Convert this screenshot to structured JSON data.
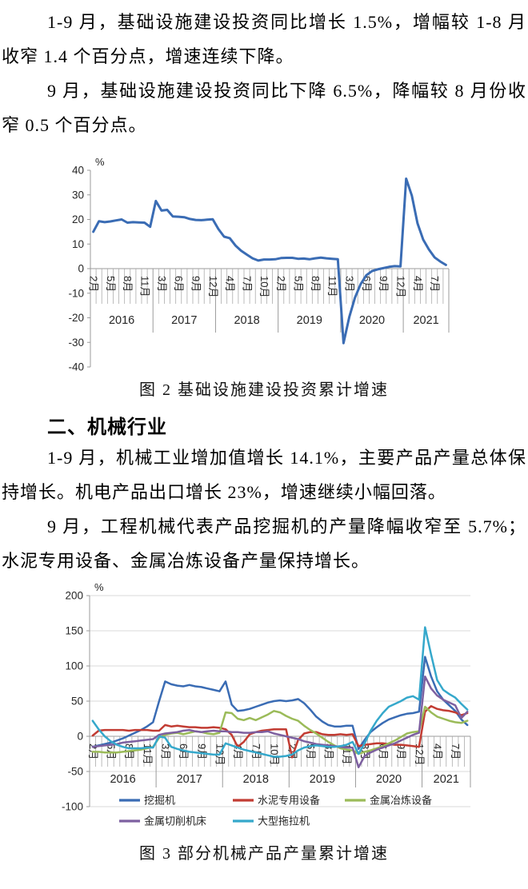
{
  "paragraphs": {
    "p1": "1-9 月，基础设施建设投资同比增长 1.5%，增幅较 1-8 月收窄 1.4 个百分点，增速连续下降。",
    "p2": "9 月，基础设施建设投资同比下降 6.5%，降幅较 8 月份收窄 0.5 个百分点。",
    "p3": "1-9 月，机械工业增加值增长 14.1%，主要产品产量总体保持增长。机电产品出口增长 23%，增速继续小幅回落。",
    "p4": "9 月，工程机械代表产品挖掘机的产量降幅收窄至 5.7%；水泥专用设备、金属冶炼设备产量保持增长。"
  },
  "section_heading": "二、机械行业",
  "figure1_caption": "图 2 基础设施建设投资累计增速",
  "figure2_caption": "图 3 部分机械产品产量累计增速",
  "colors": {
    "blue": "#3A6CB4",
    "red": "#C23C33",
    "green": "#9BBB59",
    "purple": "#7D60A0",
    "cyan": "#35A8CB",
    "axis": "#9B9B9B",
    "grid": "#D8D8D8",
    "tick_text": "#262626"
  },
  "chart_data": [
    {
      "type": "line",
      "title": "图 2 基础设施建设投资累计增速",
      "xlabel": "",
      "ylabel": "%",
      "ylim": [
        -40,
        40
      ],
      "ytick_step": 10,
      "grid": false,
      "legend_position": "none",
      "x_month_labels": [
        "2月",
        "5月",
        "8月",
        "11月",
        "3月",
        "6月",
        "9月",
        "12月",
        "4月",
        "7月",
        "10月",
        "2月",
        "5月",
        "8月",
        "11月",
        "3月",
        "6月",
        "9月",
        "12月",
        "4月",
        "7月"
      ],
      "label_every": 3,
      "years": [
        {
          "label": "2016",
          "months": 11
        },
        {
          "label": "2017",
          "months": 11
        },
        {
          "label": "2018",
          "months": 11
        },
        {
          "label": "2019",
          "months": 11
        },
        {
          "label": "2020",
          "months": 11
        },
        {
          "label": "2021",
          "months": 8
        }
      ],
      "series": [
        {
          "name": "基础设施建设投资累计增速",
          "color": "#3A6CB4",
          "values": [
            15.0,
            19.3,
            18.9,
            19.2,
            19.6,
            20.0,
            18.7,
            18.9,
            18.8,
            18.7,
            17.0,
            27.5,
            23.6,
            23.9,
            21.2,
            21.1,
            20.9,
            20.2,
            19.8,
            19.7,
            19.9,
            20.1,
            16.1,
            13.0,
            12.4,
            9.4,
            7.3,
            5.7,
            4.2,
            3.3,
            3.7,
            3.7,
            3.8,
            4.3,
            4.4,
            4.4,
            4.0,
            4.1,
            3.8,
            4.2,
            4.5,
            4.2,
            4.0,
            3.8,
            -30.3,
            -19.7,
            -11.8,
            -6.3,
            -2.7,
            -1.0,
            -0.3,
            0.2,
            0.7,
            1.0,
            0.9,
            36.6,
            29.7,
            18.4,
            11.8,
            7.8,
            4.6,
            2.9,
            1.5
          ]
        }
      ]
    },
    {
      "type": "line",
      "title": "图 3 部分机械产品产量累计增速",
      "xlabel": "",
      "ylabel": "%",
      "ylim": [
        -100,
        200
      ],
      "ytick_step": 50,
      "grid": true,
      "legend_position": "bottom",
      "x_month_labels": [
        "2月",
        "5月",
        "8月",
        "11月",
        "3月",
        "6月",
        "9月",
        "12月",
        "4月",
        "7月",
        "10月",
        "2月",
        "5月",
        "8月",
        "11月",
        "3月",
        "6月",
        "9月",
        "12月",
        "4月",
        "7月"
      ],
      "label_every": 3,
      "years": [
        {
          "label": "2016",
          "months": 11
        },
        {
          "label": "2017",
          "months": 11
        },
        {
          "label": "2018",
          "months": 11
        },
        {
          "label": "2019",
          "months": 11
        },
        {
          "label": "2020",
          "months": 11
        },
        {
          "label": "2021",
          "months": 8
        }
      ],
      "series": [
        {
          "name": "挖掘机",
          "color": "#3A6CB4",
          "values": [
            -15,
            -13,
            -11,
            -9,
            -6,
            -3,
            1,
            5,
            9,
            14,
            20,
            50,
            78,
            74,
            72,
            71,
            73,
            71,
            70,
            68,
            66,
            64,
            78,
            45,
            36,
            37,
            39,
            42,
            45,
            48,
            50,
            51,
            50,
            51,
            53,
            47,
            38,
            28,
            21,
            16,
            14,
            14,
            15,
            15,
            -18,
            -5,
            6,
            13,
            19,
            24,
            27,
            30,
            32,
            33,
            35,
            113,
            85,
            64,
            52,
            44,
            36,
            24,
            16
          ]
        },
        {
          "name": "水泥专用设备",
          "color": "#C23C33",
          "values": [
            1,
            8,
            9,
            9,
            9,
            9,
            8,
            9,
            9,
            9,
            8,
            8,
            16,
            14,
            15,
            14,
            13,
            13,
            12,
            12,
            13,
            12,
            10,
            2,
            -15,
            -8,
            3,
            6,
            8,
            9,
            10,
            10,
            10,
            -30,
            -5,
            4,
            6,
            6,
            3,
            2,
            2,
            3,
            2,
            3,
            -14,
            -12,
            -11,
            -10,
            -10,
            -11,
            -12,
            -12,
            -13,
            -14,
            -15,
            35,
            43,
            39,
            37,
            36,
            34,
            30,
            33
          ]
        },
        {
          "name": "金属冶炼设备",
          "color": "#9BBB59",
          "values": [
            -22,
            -22,
            -23,
            -23,
            -23,
            -22,
            -21,
            -20,
            -19,
            -17,
            -15,
            -2,
            2,
            4,
            5,
            3,
            5,
            7,
            6,
            4,
            3,
            5,
            34,
            33,
            25,
            23,
            26,
            23,
            27,
            31,
            36,
            34,
            29,
            25,
            22,
            15,
            9,
            4,
            -2,
            -8,
            -13,
            -17,
            -19,
            -20,
            -25,
            -22,
            -20,
            -17,
            -14,
            -10,
            -6,
            -1,
            4,
            6,
            7,
            42,
            34,
            28,
            25,
            22,
            20,
            19,
            22
          ]
        },
        {
          "name": "金属切削机床",
          "color": "#7D60A0",
          "values": [
            -15,
            -14,
            -13,
            -12,
            -11,
            -9,
            -8,
            -7,
            -6,
            -5,
            -4,
            2,
            4,
            5,
            6,
            8,
            9,
            7,
            6,
            7,
            8,
            7,
            7,
            6,
            6,
            5,
            5,
            6,
            6,
            7,
            4,
            2,
            0,
            -2,
            -4,
            -7,
            -9,
            -11,
            -12,
            -13,
            -14,
            -15,
            -16,
            -16,
            -44,
            -28,
            -23,
            -19,
            -16,
            -13,
            -10,
            -6,
            -2,
            2,
            5,
            85,
            68,
            58,
            52,
            48,
            44,
            26,
            35
          ]
        },
        {
          "name": "大型拖拉机",
          "color": "#35A8CB",
          "values": [
            22,
            10,
            0,
            -7,
            -12,
            -15,
            -17,
            -17,
            -17,
            -16,
            -16,
            0,
            -2,
            -15,
            -18,
            -20,
            -22,
            -23,
            -24,
            -25,
            -26,
            -26,
            -10,
            -13,
            -16,
            -19,
            -21,
            -23,
            -25,
            -27,
            -29,
            -29,
            -28,
            -26,
            -20,
            -16,
            -14,
            -13,
            -14,
            -15,
            -15,
            -14,
            -12,
            -8,
            -25,
            -10,
            8,
            22,
            33,
            42,
            46,
            50,
            55,
            57,
            52,
            155,
            116,
            80,
            66,
            60,
            55,
            46,
            38
          ]
        }
      ]
    }
  ]
}
